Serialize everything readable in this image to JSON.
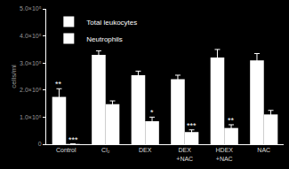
{
  "chart_data": {
    "type": "bar",
    "y_label": "cells/ml",
    "categories": [
      "Control",
      "Cl₂",
      "DEX",
      "DEX\n+NAC",
      "HDEX\n+NAC",
      "NAC"
    ],
    "series": [
      {
        "name": "Total leukocytes",
        "color": "#ffffff",
        "values": [
          175000,
          330000,
          255000,
          240000,
          320000,
          310000
        ],
        "errors": [
          30000,
          15000,
          15000,
          15000,
          30000,
          25000
        ]
      },
      {
        "name": "Neutrophils",
        "color": "#ffffff",
        "values": [
          1000,
          148000,
          85000,
          45000,
          60000,
          110000
        ],
        "errors": [
          0,
          12000,
          15000,
          8000,
          12000,
          15000
        ]
      }
    ],
    "annotations": [
      {
        "category": "Control",
        "series": "Total leukocytes",
        "text": "**"
      },
      {
        "category": "Control",
        "series": "Neutrophils",
        "text": "***"
      },
      {
        "category": "DEX",
        "series": "Neutrophils",
        "text": "*"
      },
      {
        "category": "DEX\n+NAC",
        "series": "Neutrophils",
        "text": "***"
      },
      {
        "category": "HDEX\n+NAC",
        "series": "Neutrophils",
        "text": "**"
      }
    ],
    "ylim": [
      0,
      500000
    ],
    "yticks": [
      0,
      {
        "value": 100000,
        "label": "1.0×10⁵"
      },
      {
        "value": 200000,
        "label": "2.0×10⁵"
      },
      {
        "value": 300000,
        "label": "3.0×10⁵"
      },
      {
        "value": 400000,
        "label": "4.0×10⁵"
      },
      {
        "value": 500000,
        "label": "5.0×10⁵"
      }
    ],
    "legend": "top left",
    "grid": false
  }
}
